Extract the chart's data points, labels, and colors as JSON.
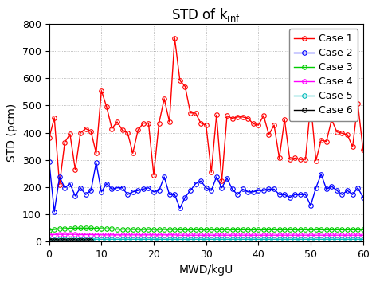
{
  "title": "STD of k",
  "title_sub": "inf",
  "xlabel": "MWD/kgU",
  "ylabel": "STD (pcm)",
  "xlim": [
    0,
    60
  ],
  "ylim": [
    0,
    800
  ],
  "yticks": [
    0,
    100,
    200,
    300,
    400,
    500,
    600,
    700,
    800
  ],
  "xticks": [
    0,
    10,
    20,
    30,
    40,
    50,
    60
  ],
  "case1_color": "#FF0000",
  "case2_color": "#0000FF",
  "case3_color": "#00CC00",
  "case4_color": "#FF00FF",
  "case5_color": "#00BBBB",
  "case6_color": "#000000",
  "case1_x": [
    0,
    1,
    2,
    3,
    4,
    5,
    6,
    7,
    8,
    9,
    10,
    11,
    12,
    13,
    14,
    15,
    16,
    17,
    18,
    19,
    20,
    21,
    22,
    23,
    24,
    25,
    26,
    27,
    28,
    29,
    30,
    31,
    32,
    33,
    34,
    35,
    36,
    37,
    38,
    39,
    40,
    41,
    42,
    43,
    44,
    45,
    46,
    47,
    48,
    49,
    50,
    51,
    52,
    53,
    54,
    55,
    56,
    57,
    58,
    59,
    60
  ],
  "case1_y": [
    380,
    455,
    210,
    365,
    395,
    265,
    400,
    415,
    405,
    325,
    555,
    495,
    415,
    440,
    410,
    400,
    325,
    410,
    435,
    435,
    245,
    435,
    525,
    440,
    748,
    592,
    570,
    473,
    472,
    435,
    428,
    255,
    465,
    222,
    462,
    453,
    458,
    458,
    453,
    433,
    428,
    463,
    393,
    428,
    307,
    448,
    302,
    307,
    302,
    302,
    507,
    298,
    373,
    368,
    448,
    403,
    398,
    393,
    348,
    507,
    337
  ],
  "case2_x": [
    0,
    1,
    2,
    3,
    4,
    5,
    6,
    7,
    8,
    9,
    10,
    11,
    12,
    13,
    14,
    15,
    16,
    17,
    18,
    19,
    20,
    21,
    22,
    23,
    24,
    25,
    26,
    27,
    28,
    29,
    30,
    31,
    32,
    33,
    34,
    35,
    36,
    37,
    38,
    39,
    40,
    41,
    42,
    43,
    44,
    45,
    46,
    47,
    48,
    49,
    50,
    51,
    52,
    53,
    54,
    55,
    56,
    57,
    58,
    59,
    60
  ],
  "case2_y": [
    295,
    110,
    238,
    198,
    213,
    168,
    198,
    173,
    188,
    290,
    183,
    213,
    193,
    198,
    198,
    173,
    183,
    188,
    193,
    198,
    183,
    188,
    238,
    173,
    173,
    123,
    163,
    188,
    213,
    223,
    198,
    188,
    238,
    198,
    233,
    193,
    173,
    193,
    183,
    183,
    188,
    188,
    193,
    193,
    173,
    173,
    163,
    173,
    173,
    173,
    133,
    198,
    248,
    193,
    203,
    188,
    173,
    188,
    173,
    198,
    163
  ],
  "case3_x": [
    0,
    1,
    2,
    3,
    4,
    5,
    6,
    7,
    8,
    9,
    10,
    11,
    12,
    13,
    14,
    15,
    16,
    17,
    18,
    19,
    20,
    21,
    22,
    23,
    24,
    25,
    26,
    27,
    28,
    29,
    30,
    31,
    32,
    33,
    34,
    35,
    36,
    37,
    38,
    39,
    40,
    41,
    42,
    43,
    44,
    45,
    46,
    47,
    48,
    49,
    50,
    51,
    52,
    53,
    54,
    55,
    56,
    57,
    58,
    59,
    60
  ],
  "case3_y": [
    42,
    45,
    47,
    48,
    49,
    50,
    50,
    50,
    50,
    49,
    48,
    47,
    47,
    46,
    46,
    46,
    45,
    45,
    45,
    45,
    45,
    45,
    45,
    45,
    45,
    44,
    44,
    44,
    44,
    44,
    44,
    44,
    44,
    44,
    44,
    44,
    44,
    44,
    44,
    44,
    44,
    44,
    44,
    44,
    44,
    44,
    44,
    44,
    44,
    44,
    44,
    44,
    44,
    44,
    44,
    44,
    44,
    44,
    44,
    44,
    44
  ],
  "case4_x": [
    0,
    1,
    2,
    3,
    4,
    5,
    6,
    7,
    8,
    9,
    10,
    11,
    12,
    13,
    14,
    15,
    16,
    17,
    18,
    19,
    20,
    21,
    22,
    23,
    24,
    25,
    26,
    27,
    28,
    29,
    30,
    31,
    32,
    33,
    34,
    35,
    36,
    37,
    38,
    39,
    40,
    41,
    42,
    43,
    44,
    45,
    46,
    47,
    48,
    49,
    50,
    51,
    52,
    53,
    54,
    55,
    56,
    57,
    58,
    59,
    60
  ],
  "case4_y": [
    25,
    26,
    27,
    27,
    27,
    27,
    26,
    26,
    26,
    26,
    25,
    25,
    25,
    25,
    25,
    25,
    25,
    25,
    25,
    25,
    25,
    25,
    25,
    25,
    25,
    24,
    24,
    24,
    24,
    24,
    24,
    24,
    24,
    24,
    24,
    24,
    24,
    24,
    24,
    24,
    24,
    24,
    24,
    24,
    24,
    24,
    24,
    24,
    24,
    24,
    24,
    24,
    24,
    24,
    24,
    24,
    24,
    24,
    24,
    24,
    24
  ],
  "case5_x": [
    0,
    1,
    2,
    3,
    4,
    5,
    6,
    7,
    8,
    9,
    10,
    11,
    12,
    13,
    14,
    15,
    16,
    17,
    18,
    19,
    20,
    21,
    22,
    23,
    24,
    25,
    26,
    27,
    28,
    29,
    30,
    31,
    32,
    33,
    34,
    35,
    36,
    37,
    38,
    39,
    40,
    41,
    42,
    43,
    44,
    45,
    46,
    47,
    48,
    49,
    50,
    51,
    52,
    53,
    54,
    55,
    56,
    57,
    58,
    59,
    60
  ],
  "case5_y": [
    8,
    8,
    9,
    9,
    9,
    9,
    9,
    9,
    9,
    9,
    9,
    9,
    9,
    9,
    9,
    9,
    9,
    9,
    9,
    9,
    9,
    9,
    9,
    9,
    9,
    9,
    9,
    9,
    9,
    9,
    9,
    9,
    9,
    9,
    9,
    9,
    9,
    9,
    9,
    9,
    9,
    9,
    9,
    9,
    9,
    9,
    9,
    9,
    9,
    9,
    9,
    9,
    9,
    9,
    9,
    9,
    9,
    9,
    9,
    9,
    9
  ],
  "case6_x": [
    0,
    0.5,
    1,
    1.5,
    2,
    2.5,
    3,
    3.5,
    4,
    4.5,
    5,
    5.5,
    6,
    6.5,
    7,
    7.5,
    8
  ],
  "case6_y": [
    5,
    5,
    5,
    5,
    5,
    5,
    5,
    5,
    5,
    5,
    5,
    5,
    5,
    5,
    5,
    5,
    5
  ],
  "bg_color": "#FFFFFF",
  "grid_color": "#999999",
  "legend_fontsize": 9,
  "title_fontsize": 12,
  "label_fontsize": 10,
  "tick_fontsize": 9
}
